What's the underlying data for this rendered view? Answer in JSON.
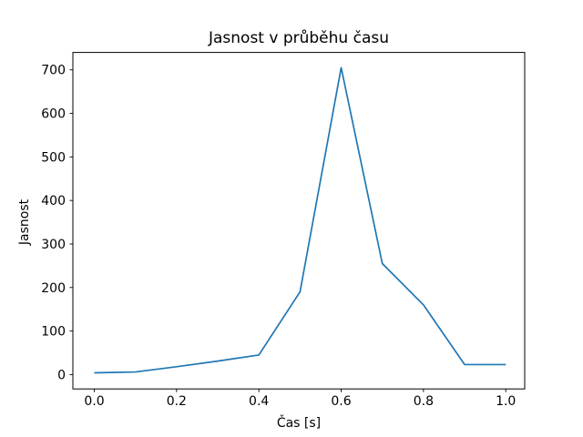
{
  "figure": {
    "background": "#ffffff"
  },
  "chart_data": {
    "type": "line",
    "title": "Jasnost v průběhu času",
    "xlabel": "Čas [s]",
    "ylabel": "Jasnost",
    "x": [
      0.0,
      0.1,
      0.2,
      0.3,
      0.4,
      0.5,
      0.6,
      0.7,
      0.8,
      0.9,
      1.0
    ],
    "y": [
      4,
      6,
      18,
      31,
      45,
      190,
      705,
      255,
      160,
      23,
      23
    ],
    "line_color": "#1f77b4",
    "axis_color": "#000000",
    "xticks": [
      0.0,
      0.2,
      0.4,
      0.6,
      0.8,
      1.0
    ],
    "xtick_labels": [
      "0.0",
      "0.2",
      "0.4",
      "0.6",
      "0.8",
      "1.0"
    ],
    "yticks": [
      0,
      100,
      200,
      300,
      400,
      500,
      600,
      700
    ],
    "ytick_labels": [
      "0",
      "100",
      "200",
      "300",
      "400",
      "500",
      "600",
      "700"
    ],
    "xlim": [
      -0.052,
      1.046
    ],
    "ylim": [
      -33,
      740
    ],
    "grid": false,
    "legend": false,
    "markers": false
  }
}
